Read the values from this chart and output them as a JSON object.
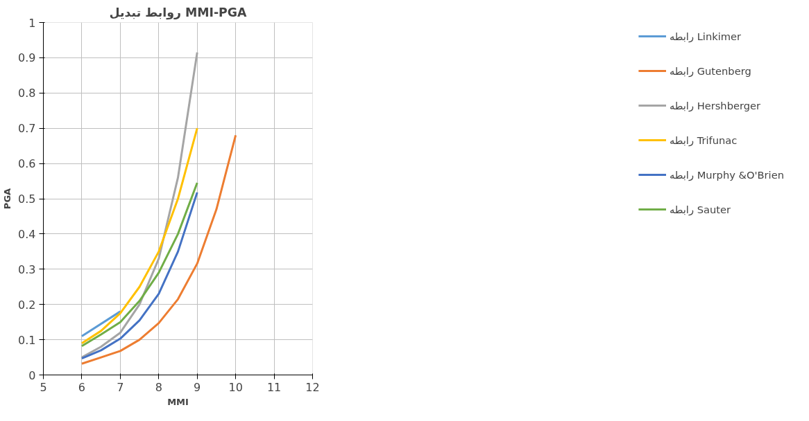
{
  "chart_data": {
    "type": "line",
    "title": "روابط تبدیل MMI-PGA",
    "xlabel": "MMI",
    "ylabel": "PGA",
    "xlim": [
      5,
      12
    ],
    "xticks": [
      5,
      6,
      7,
      8,
      9,
      10,
      11,
      12
    ],
    "ylim": [
      0,
      1
    ],
    "yticks": [
      0,
      0.1,
      0.2,
      0.3,
      0.4,
      0.5,
      0.6,
      0.7,
      0.8,
      0.9,
      1
    ],
    "grid": true,
    "legend": "right",
    "marker": "none",
    "line_style": "solid",
    "series": [
      {
        "name": "رابطه Linkimer",
        "color": "#5b9bd5",
        "x": [
          6,
          7
        ],
        "values": [
          0.11,
          0.18
        ]
      },
      {
        "name": "رابطه Gutenberg",
        "color": "#ed7d31",
        "x": [
          6,
          6.5,
          7,
          7.5,
          8,
          8.5,
          9,
          9.5,
          10
        ],
        "values": [
          0.032,
          0.05,
          0.068,
          0.1,
          0.147,
          0.215,
          0.316,
          0.47,
          0.68
        ]
      },
      {
        "name": "رابطه Hershberger",
        "color": "#a5a5a5",
        "x": [
          6,
          6.5,
          7,
          7.5,
          8,
          8.5,
          9
        ],
        "values": [
          0.05,
          0.08,
          0.12,
          0.2,
          0.33,
          0.56,
          0.915
        ]
      },
      {
        "name": "رابطه Trifunac",
        "color": "#ffc000",
        "x": [
          6,
          6.5,
          7,
          7.5,
          8,
          8.5,
          9
        ],
        "values": [
          0.09,
          0.125,
          0.175,
          0.25,
          0.35,
          0.5,
          0.7
        ]
      },
      {
        "name": "رابطه Murphy &O'Brien",
        "color": "#4472c4",
        "x": [
          6,
          6.5,
          7,
          7.5,
          8,
          8.5,
          9
        ],
        "values": [
          0.047,
          0.07,
          0.103,
          0.155,
          0.23,
          0.35,
          0.518
        ]
      },
      {
        "name": "رابطه Sauter",
        "color": "#70ad47",
        "x": [
          6,
          6.5,
          7,
          7.5,
          8,
          8.5,
          9
        ],
        "values": [
          0.082,
          0.115,
          0.15,
          0.21,
          0.29,
          0.4,
          0.545
        ]
      }
    ]
  }
}
